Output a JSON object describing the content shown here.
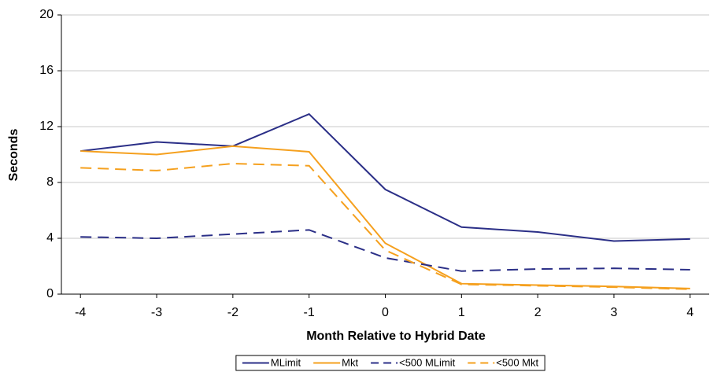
{
  "chart_data": {
    "type": "line",
    "x_label": "Month Relative to Hybrid Date",
    "y_label": "Seconds",
    "x": [
      -4,
      -3,
      -2,
      -1,
      0,
      1,
      2,
      3,
      4
    ],
    "xlim": [
      -4.25,
      4.25
    ],
    "xticks": [
      -4,
      -3,
      -2,
      -1,
      0,
      1,
      2,
      3,
      4
    ],
    "ylim": [
      0,
      20
    ],
    "yticks": [
      0,
      4,
      8,
      12,
      16,
      20
    ],
    "grid": true,
    "legend": "bottom",
    "series": [
      {
        "name": "MLimit",
        "color": "#2b2f87",
        "dash": "solid",
        "values": [
          10.25,
          10.9,
          10.6,
          12.9,
          7.5,
          4.8,
          4.45,
          3.8,
          3.95
        ]
      },
      {
        "name": "Mkt",
        "color": "#f5a01e",
        "dash": "solid",
        "values": [
          10.25,
          10.0,
          10.6,
          10.2,
          3.65,
          0.75,
          0.65,
          0.55,
          0.4
        ]
      },
      {
        "name": "<500 MLimit",
        "color": "#2b2f87",
        "dash": "dashed",
        "values": [
          4.1,
          4.0,
          4.3,
          4.6,
          2.6,
          1.65,
          1.8,
          1.85,
          1.75
        ]
      },
      {
        "name": "<500 Mkt",
        "color": "#f5a01e",
        "dash": "dashed",
        "values": [
          9.05,
          8.85,
          9.35,
          9.2,
          3.15,
          0.7,
          0.6,
          0.5,
          0.35
        ]
      }
    ]
  }
}
